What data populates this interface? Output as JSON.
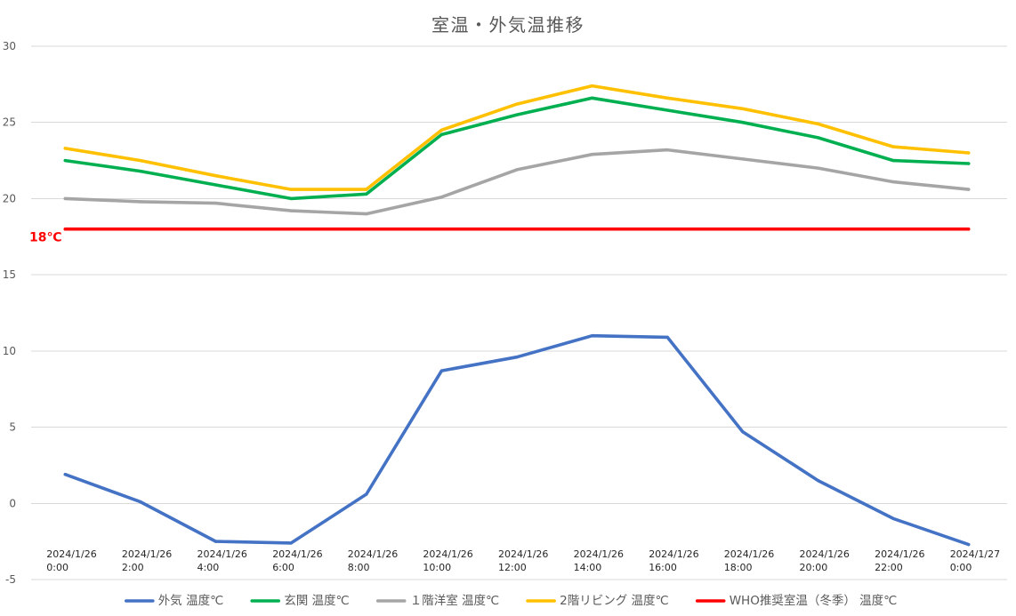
{
  "chart_data": {
    "type": "line",
    "title": "室温・外気温推移",
    "categories": [
      "2024/1/26 0:00",
      "2024/1/26 2:00",
      "2024/1/26 4:00",
      "2024/1/26 6:00",
      "2024/1/26 8:00",
      "2024/1/26 10:00",
      "2024/1/26 12:00",
      "2024/1/26 14:00",
      "2024/1/26 16:00",
      "2024/1/26 18:00",
      "2024/1/26 20:00",
      "2024/1/26 22:00",
      "2024/1/27 0:00"
    ],
    "ylim": [
      -5,
      30
    ],
    "yticks": [
      -5,
      0,
      5,
      10,
      15,
      20,
      25,
      30
    ],
    "grid": true,
    "legend": "bottom",
    "series": [
      {
        "name": "外気 温度℃",
        "color": "#4472C4",
        "values": [
          1.9,
          0.1,
          -2.5,
          -2.6,
          0.6,
          8.7,
          9.6,
          11.0,
          10.9,
          4.7,
          1.5,
          -1.0,
          -2.7
        ]
      },
      {
        "name": "玄関 温度℃",
        "color": "#00B050",
        "values": [
          22.5,
          21.8,
          20.9,
          20.0,
          20.3,
          24.2,
          25.5,
          26.6,
          25.8,
          25.0,
          24.0,
          22.5,
          22.3
        ]
      },
      {
        "name": "１階洋室 温度℃",
        "color": "#A5A5A5",
        "values": [
          20.0,
          19.8,
          19.7,
          19.2,
          19.0,
          20.1,
          21.9,
          22.9,
          23.2,
          22.6,
          22.0,
          21.1,
          20.6
        ]
      },
      {
        "name": "2階リビング 温度℃",
        "color": "#FFC000",
        "values": [
          23.3,
          22.5,
          21.5,
          20.6,
          20.6,
          24.5,
          26.2,
          27.4,
          26.6,
          25.9,
          24.9,
          23.4,
          23.0
        ]
      },
      {
        "name": "WHO推奨室温（冬季） 温度℃",
        "color": "#FF0000",
        "values": [
          18,
          18,
          18,
          18,
          18,
          18,
          18,
          18,
          18,
          18,
          18,
          18,
          18
        ]
      }
    ],
    "annotations": [
      {
        "text": "18℃",
        "value": 18,
        "color": "#FF0000"
      }
    ]
  }
}
